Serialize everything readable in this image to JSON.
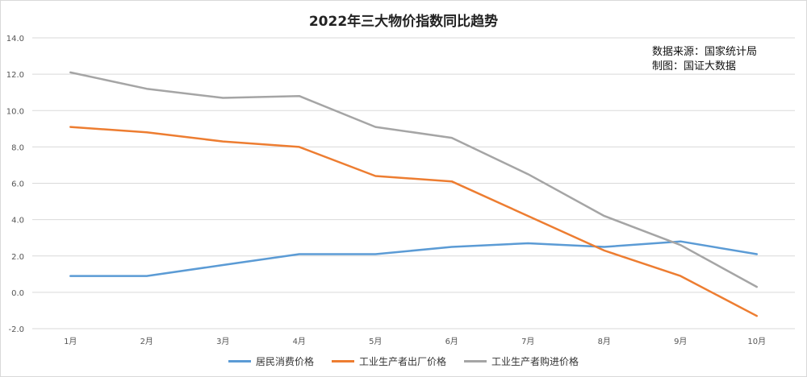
{
  "title": "2022年三大物价指数同比趋势",
  "source_lines": [
    "数据来源：国家统计局",
    "制图：国证大数据"
  ],
  "chart_data": {
    "type": "line",
    "title": "2022年三大物价指数同比趋势",
    "categories": [
      "1月",
      "2月",
      "3月",
      "4月",
      "5月",
      "6月",
      "7月",
      "8月",
      "9月",
      "10月"
    ],
    "ylim": [
      -2.0,
      14.0
    ],
    "yticks": [
      "14.0",
      "12.0",
      "10.0",
      "8.0",
      "6.0",
      "4.0",
      "2.0",
      "0.0",
      "-2.0"
    ],
    "grid": true,
    "legend_position": "bottom",
    "series": [
      {
        "name": "居民消费价格",
        "color": "#5b9bd5",
        "values": [
          0.9,
          0.9,
          1.5,
          2.1,
          2.1,
          2.5,
          2.7,
          2.5,
          2.8,
          2.1
        ]
      },
      {
        "name": "工业生产者出厂价格",
        "color": "#ed7d31",
        "values": [
          9.1,
          8.8,
          8.3,
          8.0,
          6.4,
          6.1,
          4.2,
          2.3,
          0.9,
          -1.3
        ]
      },
      {
        "name": "工业生产者购进价格",
        "color": "#a5a5a5",
        "values": [
          12.1,
          11.2,
          10.7,
          10.8,
          9.1,
          8.5,
          6.5,
          4.2,
          2.6,
          0.3
        ]
      }
    ]
  }
}
